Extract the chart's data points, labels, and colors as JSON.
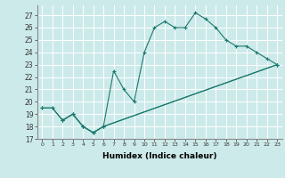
{
  "xlabel": "Humidex (Indice chaleur)",
  "xlim": [
    -0.5,
    23.5
  ],
  "ylim": [
    17,
    27.8
  ],
  "yticks": [
    17,
    18,
    19,
    20,
    21,
    22,
    23,
    24,
    25,
    26,
    27
  ],
  "xticks": [
    0,
    1,
    2,
    3,
    4,
    5,
    6,
    7,
    8,
    9,
    10,
    11,
    12,
    13,
    14,
    15,
    16,
    17,
    18,
    19,
    20,
    21,
    22,
    23
  ],
  "background_color": "#cdeaea",
  "grid_color": "#ffffff",
  "line_color": "#1a7a6e",
  "line1_x": [
    0,
    1,
    2,
    3,
    4,
    5,
    6,
    7,
    8,
    9,
    10,
    11,
    12,
    13,
    14,
    15,
    16,
    17,
    18,
    19,
    20,
    21,
    22,
    23
  ],
  "line1_y": [
    19.5,
    19.5,
    18.5,
    19.0,
    18.0,
    17.5,
    18.0,
    22.5,
    21.0,
    20.0,
    24.0,
    26.0,
    26.5,
    26.0,
    26.0,
    27.2,
    26.7,
    26.0,
    25.0,
    24.5,
    24.5,
    24.0,
    23.5,
    23.0
  ],
  "line2_x": [
    0,
    1,
    2,
    3,
    4,
    5,
    6,
    23
  ],
  "line2_y": [
    19.5,
    19.5,
    18.5,
    19.0,
    18.0,
    17.5,
    18.0,
    23.0
  ],
  "line3_x": [
    2,
    3,
    4,
    5,
    6,
    23
  ],
  "line3_y": [
    18.5,
    19.0,
    18.0,
    17.5,
    18.0,
    23.0
  ]
}
